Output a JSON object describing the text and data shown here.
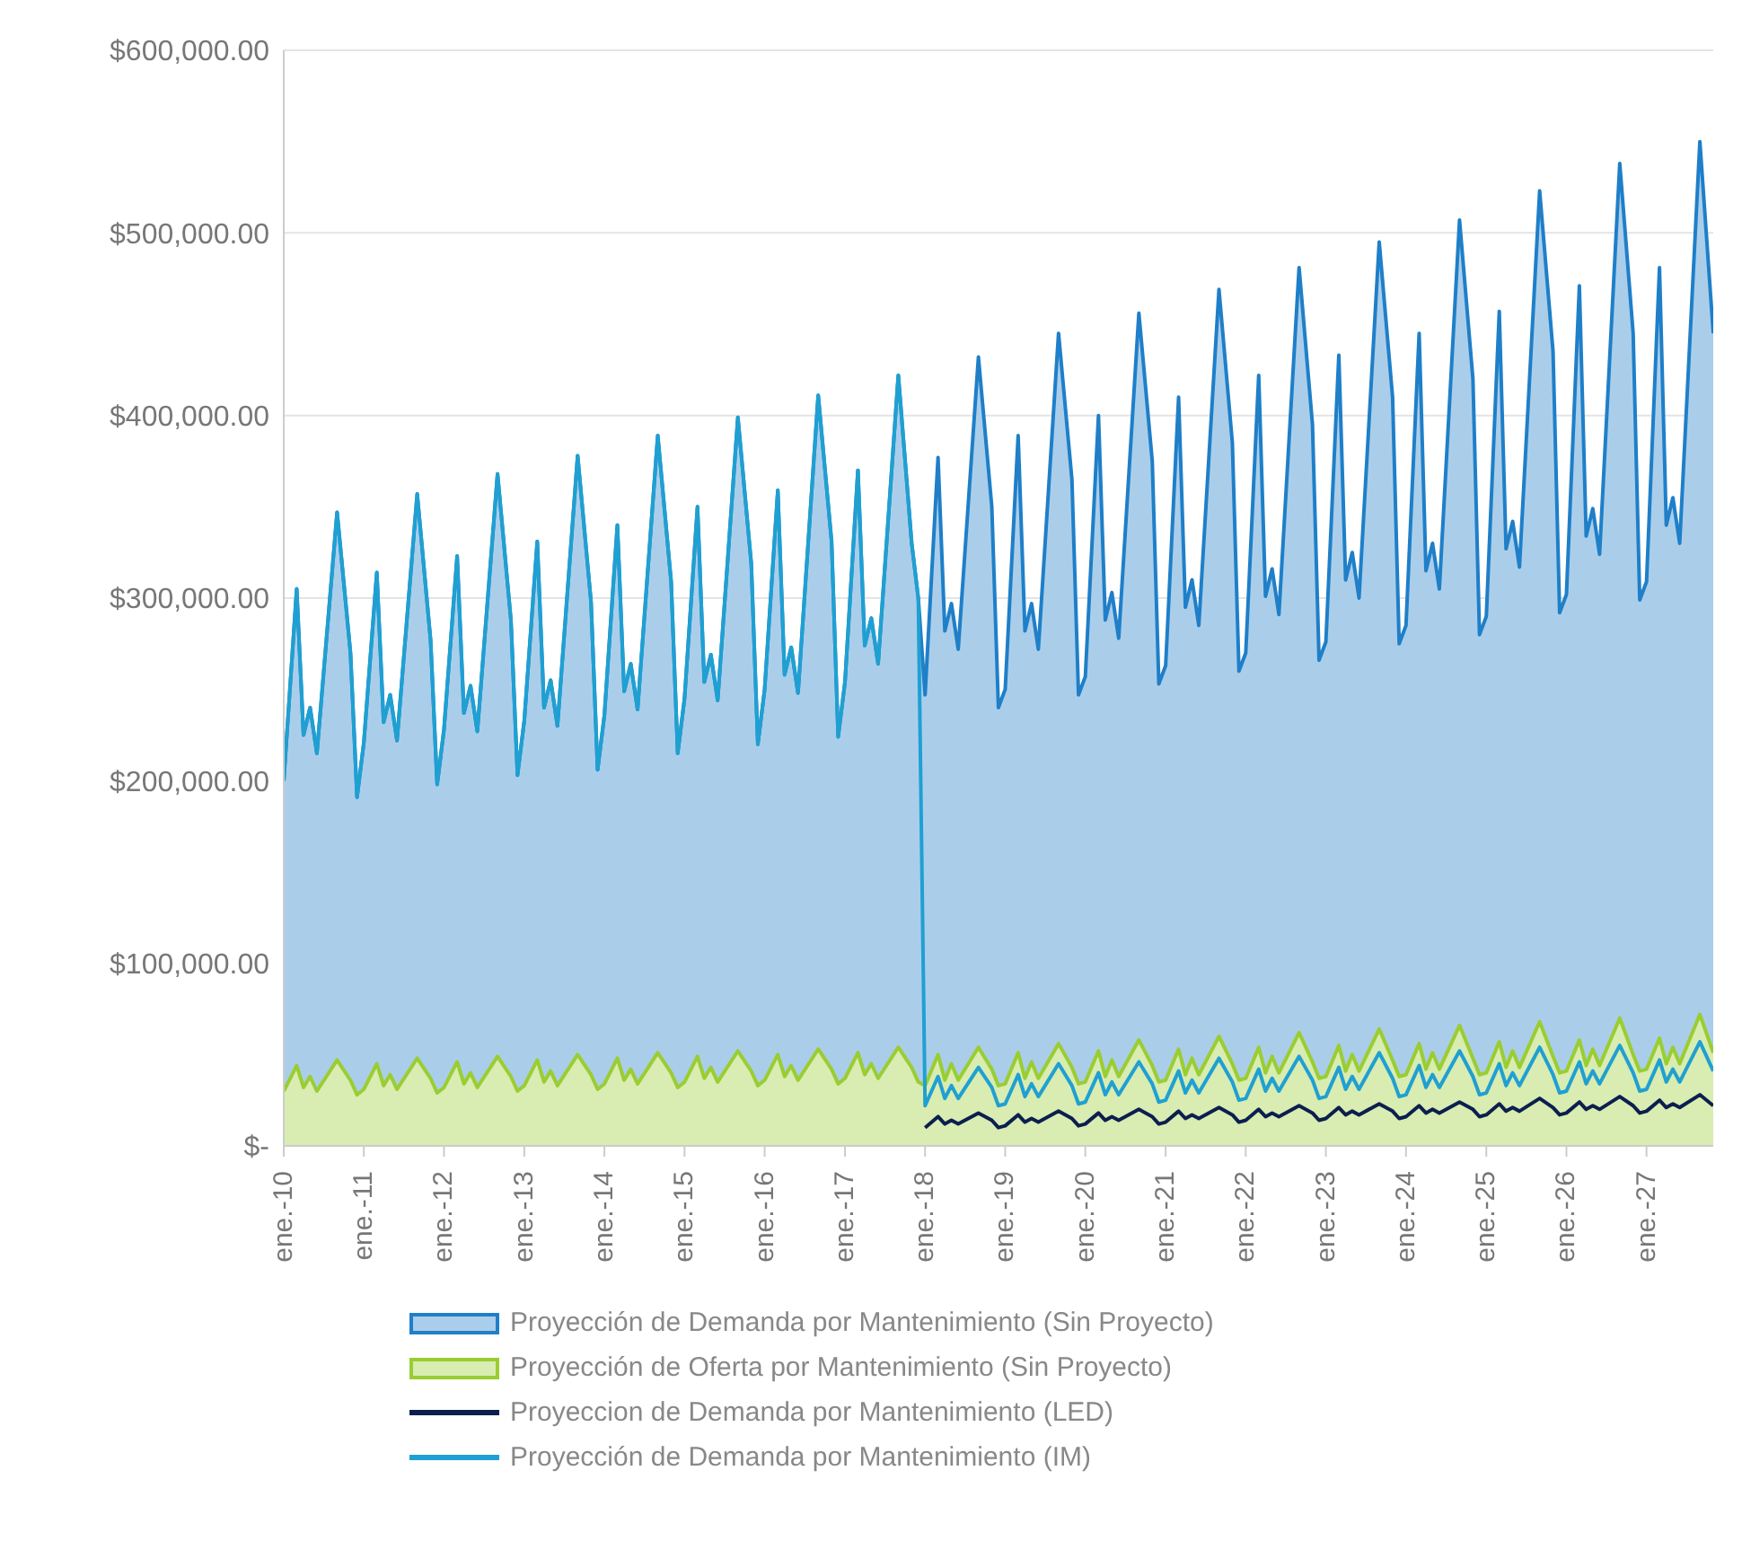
{
  "chart_data": {
    "type": "area",
    "x": [
      "2010-01",
      "2010-03",
      "2010-04",
      "2010-05",
      "2010-06",
      "2010-09",
      "2010-11",
      "2010-12",
      "2011-01",
      "2011-03",
      "2011-04",
      "2011-05",
      "2011-06",
      "2011-09",
      "2011-11",
      "2011-12",
      "2012-01",
      "2012-03",
      "2012-04",
      "2012-05",
      "2012-06",
      "2012-09",
      "2012-11",
      "2012-12",
      "2013-01",
      "2013-03",
      "2013-04",
      "2013-05",
      "2013-06",
      "2013-09",
      "2013-11",
      "2013-12",
      "2014-01",
      "2014-03",
      "2014-04",
      "2014-05",
      "2014-06",
      "2014-09",
      "2014-11",
      "2014-12",
      "2015-01",
      "2015-03",
      "2015-04",
      "2015-05",
      "2015-06",
      "2015-09",
      "2015-11",
      "2015-12",
      "2016-01",
      "2016-03",
      "2016-04",
      "2016-05",
      "2016-06",
      "2016-09",
      "2016-11",
      "2016-12",
      "2017-01",
      "2017-03",
      "2017-04",
      "2017-05",
      "2017-06",
      "2017-09",
      "2017-11",
      "2017-12",
      "2018-01",
      "2018-03",
      "2018-04",
      "2018-05",
      "2018-06",
      "2018-09",
      "2018-11",
      "2018-12",
      "2019-01",
      "2019-03",
      "2019-04",
      "2019-05",
      "2019-06",
      "2019-09",
      "2019-11",
      "2019-12",
      "2020-01",
      "2020-03",
      "2020-04",
      "2020-05",
      "2020-06",
      "2020-09",
      "2020-11",
      "2020-12",
      "2021-01",
      "2021-03",
      "2021-04",
      "2021-05",
      "2021-06",
      "2021-09",
      "2021-11",
      "2021-12",
      "2022-01",
      "2022-03",
      "2022-04",
      "2022-05",
      "2022-06",
      "2022-09",
      "2022-11",
      "2022-12",
      "2023-01",
      "2023-03",
      "2023-04",
      "2023-05",
      "2023-06",
      "2023-09",
      "2023-11",
      "2023-12",
      "2024-01",
      "2024-03",
      "2024-04",
      "2024-05",
      "2024-06",
      "2024-09",
      "2024-11",
      "2024-12",
      "2025-01",
      "2025-03",
      "2025-04",
      "2025-05",
      "2025-06",
      "2025-09",
      "2025-11",
      "2025-12",
      "2026-01",
      "2026-03",
      "2026-04",
      "2026-05",
      "2026-06",
      "2026-09",
      "2026-11",
      "2026-12",
      "2027-01",
      "2027-03",
      "2027-04",
      "2027-05",
      "2027-06",
      "2027-09",
      "2027-11"
    ],
    "series": [
      {
        "name": "Proyección de Demanda por Mantenimiento (Sin Proyecto)",
        "color": "#1f7fc8",
        "values": [
          200000,
          305000,
          225000,
          240000,
          215000,
          347000,
          270000,
          191000,
          221000,
          314000,
          232000,
          247000,
          222000,
          357000,
          277000,
          198000,
          228000,
          323000,
          237000,
          252000,
          227000,
          368000,
          288000,
          203000,
          233000,
          331000,
          240000,
          255000,
          230000,
          378000,
          298000,
          206000,
          236000,
          340000,
          249000,
          264000,
          239000,
          389000,
          309000,
          215000,
          245000,
          350000,
          254000,
          269000,
          244000,
          399000,
          319000,
          220000,
          250000,
          359000,
          258000,
          273000,
          248000,
          411000,
          331000,
          224000,
          254000,
          370000,
          274000,
          289000,
          264000,
          422000,
          330000,
          300000,
          247000,
          377000,
          282000,
          297000,
          272000,
          432000,
          350000,
          240000,
          250000,
          389000,
          282000,
          297000,
          272000,
          445000,
          365000,
          247000,
          257000,
          400000,
          288000,
          303000,
          278000,
          456000,
          375000,
          253000,
          263000,
          410000,
          295000,
          310000,
          285000,
          469000,
          385000,
          260000,
          270000,
          422000,
          301000,
          316000,
          291000,
          481000,
          395000,
          266000,
          276000,
          433000,
          310000,
          325000,
          300000,
          495000,
          410000,
          275000,
          285000,
          445000,
          315000,
          330000,
          305000,
          507000,
          420000,
          280000,
          290000,
          457000,
          327000,
          342000,
          317000,
          523000,
          435000,
          292000,
          302000,
          471000,
          334000,
          349000,
          324000,
          538000,
          445000,
          299000,
          309000,
          481000,
          340000,
          355000,
          330000,
          550000,
          445000
        ]
      },
      {
        "name": "Proyección de Oferta por Mantenimiento (Sin Proyecto)",
        "color": "#9acd32",
        "values": [
          30000,
          44000,
          32000,
          38000,
          30000,
          47000,
          36000,
          28000,
          31000,
          45000,
          33000,
          39000,
          31000,
          48000,
          37000,
          29000,
          32000,
          46000,
          34000,
          40000,
          32000,
          49000,
          38000,
          30000,
          33000,
          47000,
          35000,
          41000,
          33000,
          50000,
          39000,
          31000,
          34000,
          48000,
          36000,
          42000,
          34000,
          51000,
          40000,
          32000,
          35000,
          49000,
          37000,
          43000,
          35000,
          52000,
          41000,
          33000,
          36000,
          50000,
          38000,
          44000,
          36000,
          53000,
          42000,
          34000,
          37000,
          51000,
          39000,
          45000,
          37000,
          54000,
          43000,
          35000,
          33000,
          50000,
          36000,
          45000,
          36000,
          54000,
          42000,
          33000,
          34000,
          51000,
          37000,
          46000,
          37000,
          56000,
          43000,
          34000,
          35000,
          52000,
          38000,
          47000,
          38000,
          58000,
          44000,
          35000,
          36000,
          53000,
          39000,
          48000,
          39000,
          60000,
          45000,
          36000,
          37000,
          54000,
          40000,
          49000,
          40000,
          62000,
          46000,
          37000,
          38000,
          55000,
          41000,
          50000,
          41000,
          64000,
          47000,
          38000,
          39000,
          56000,
          42000,
          51000,
          42000,
          66000,
          48000,
          39000,
          40000,
          57000,
          43000,
          52000,
          43000,
          68000,
          49000,
          40000,
          41000,
          58000,
          44000,
          53000,
          44000,
          70000,
          50000,
          41000,
          42000,
          59000,
          45000,
          54000,
          45000,
          72000,
          51000
        ]
      },
      {
        "name": "Proyeccion de Demanda por Mantenimiento (LED)",
        "type": "line",
        "color": "#0b1f4f",
        "values": [
          null,
          null,
          null,
          null,
          null,
          null,
          null,
          null,
          null,
          null,
          null,
          null,
          null,
          null,
          null,
          null,
          null,
          null,
          null,
          null,
          null,
          null,
          null,
          null,
          null,
          null,
          null,
          null,
          null,
          null,
          null,
          null,
          null,
          null,
          null,
          null,
          null,
          null,
          null,
          null,
          null,
          null,
          null,
          null,
          null,
          null,
          null,
          null,
          null,
          null,
          null,
          null,
          null,
          null,
          null,
          null,
          null,
          null,
          null,
          null,
          null,
          null,
          null,
          null,
          10000,
          16000,
          12000,
          14000,
          12000,
          18000,
          14000,
          10000,
          11000,
          17000,
          13000,
          15000,
          13000,
          19000,
          15000,
          11000,
          12000,
          18000,
          14000,
          16000,
          14000,
          20000,
          16000,
          12000,
          13000,
          19000,
          15000,
          17000,
          15000,
          21000,
          17000,
          13000,
          14000,
          20000,
          16000,
          18000,
          16000,
          22000,
          18000,
          14000,
          15000,
          21000,
          17000,
          19000,
          17000,
          23000,
          19000,
          15000,
          16000,
          22000,
          18000,
          20000,
          18000,
          24000,
          20000,
          16000,
          17000,
          23000,
          19000,
          21000,
          19000,
          26000,
          21000,
          17000,
          18000,
          24000,
          20000,
          22000,
          20000,
          27000,
          22000,
          18000,
          19000,
          25000,
          21000,
          23000,
          21000,
          28000,
          22000
        ]
      },
      {
        "name": "Proyección de Demanda por Mantenimiento (IM)",
        "type": "line",
        "color": "#1fa0d2",
        "values": [
          200000,
          305000,
          225000,
          240000,
          215000,
          347000,
          270000,
          191000,
          221000,
          314000,
          232000,
          247000,
          222000,
          357000,
          277000,
          198000,
          228000,
          323000,
          237000,
          252000,
          227000,
          368000,
          288000,
          203000,
          233000,
          331000,
          240000,
          255000,
          230000,
          378000,
          298000,
          206000,
          236000,
          340000,
          249000,
          264000,
          239000,
          389000,
          309000,
          215000,
          245000,
          350000,
          254000,
          269000,
          244000,
          399000,
          319000,
          220000,
          250000,
          359000,
          258000,
          273000,
          248000,
          411000,
          331000,
          224000,
          254000,
          370000,
          274000,
          289000,
          264000,
          422000,
          330000,
          300000,
          22000,
          38000,
          26000,
          33000,
          26000,
          43000,
          32000,
          22000,
          23000,
          39000,
          27000,
          34000,
          27000,
          45000,
          33000,
          23000,
          24000,
          40000,
          28000,
          35000,
          28000,
          46000,
          34000,
          24000,
          25000,
          41000,
          29000,
          36000,
          29000,
          48000,
          35000,
          25000,
          26000,
          42000,
          30000,
          37000,
          30000,
          49000,
          36000,
          26000,
          27000,
          43000,
          31000,
          38000,
          31000,
          51000,
          37000,
          27000,
          28000,
          44000,
          32000,
          39000,
          32000,
          52000,
          38000,
          28000,
          29000,
          45000,
          33000,
          40000,
          33000,
          54000,
          39000,
          29000,
          30000,
          46000,
          34000,
          41000,
          34000,
          55000,
          40000,
          30000,
          31000,
          47000,
          35000,
          42000,
          35000,
          57000,
          41000
        ]
      }
    ],
    "xlim": [
      "2010-01",
      "2027-11"
    ],
    "xticks": [
      {
        "value": "2010-01",
        "label": "ene.-10"
      },
      {
        "value": "2011-01",
        "label": "ene.-11"
      },
      {
        "value": "2012-01",
        "label": "ene.-12"
      },
      {
        "value": "2013-01",
        "label": "ene.-13"
      },
      {
        "value": "2014-01",
        "label": "ene.-14"
      },
      {
        "value": "2015-01",
        "label": "ene.-15"
      },
      {
        "value": "2016-01",
        "label": "ene.-16"
      },
      {
        "value": "2017-01",
        "label": "ene.-17"
      },
      {
        "value": "2018-01",
        "label": "ene.-18"
      },
      {
        "value": "2019-01",
        "label": "ene.-19"
      },
      {
        "value": "2020-01",
        "label": "ene.-20"
      },
      {
        "value": "2021-01",
        "label": "ene.-21"
      },
      {
        "value": "2022-01",
        "label": "ene.-22"
      },
      {
        "value": "2023-01",
        "label": "ene.-23"
      },
      {
        "value": "2024-01",
        "label": "ene.-24"
      },
      {
        "value": "2025-01",
        "label": "ene.-25"
      },
      {
        "value": "2026-01",
        "label": "ene.-26"
      },
      {
        "value": "2027-01",
        "label": "ene.-27"
      }
    ],
    "ylim": [
      0,
      600000
    ],
    "yticks": [
      {
        "value": 0,
        "label": "$-"
      },
      {
        "value": 100000,
        "label": "$100,000.00"
      },
      {
        "value": 200000,
        "label": "$200,000.00"
      },
      {
        "value": 300000,
        "label": "$300,000.00"
      },
      {
        "value": 400000,
        "label": "$400,000.00"
      },
      {
        "value": 500000,
        "label": "$500,000.00"
      },
      {
        "value": 600000,
        "label": "$600,000.00"
      }
    ],
    "grid": "y",
    "legend": "bottom",
    "marker": "none",
    "line_style": "solid"
  }
}
